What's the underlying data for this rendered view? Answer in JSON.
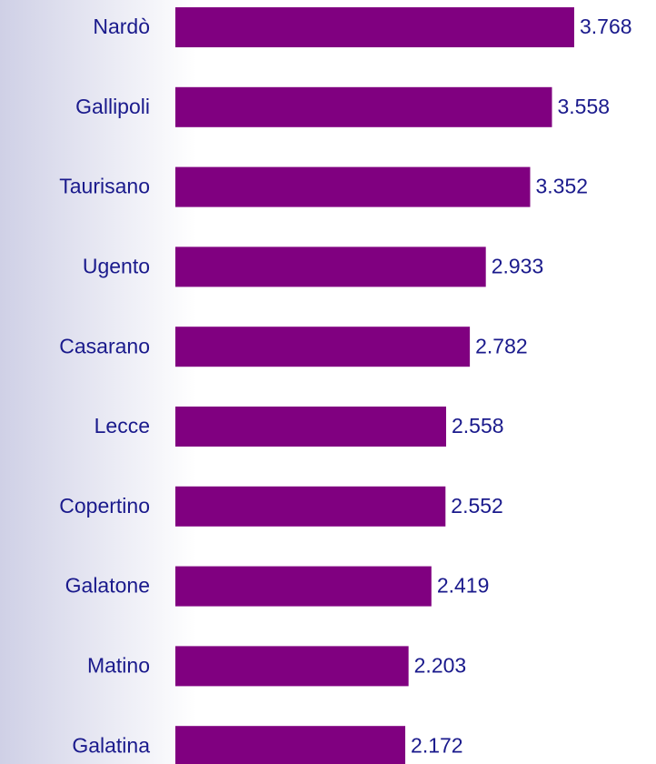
{
  "chart_data": {
    "type": "bar",
    "orientation": "horizontal",
    "categories": [
      "Nardò",
      "Gallipoli",
      "Taurisano",
      "Ugento",
      "Casarano",
      "Lecce",
      "Copertino",
      "Galatone",
      "Matino",
      "Galatina"
    ],
    "values": [
      3.768,
      3.558,
      3.352,
      2.933,
      2.782,
      2.558,
      2.552,
      2.419,
      2.203,
      2.172
    ],
    "color": "#800080"
  }
}
